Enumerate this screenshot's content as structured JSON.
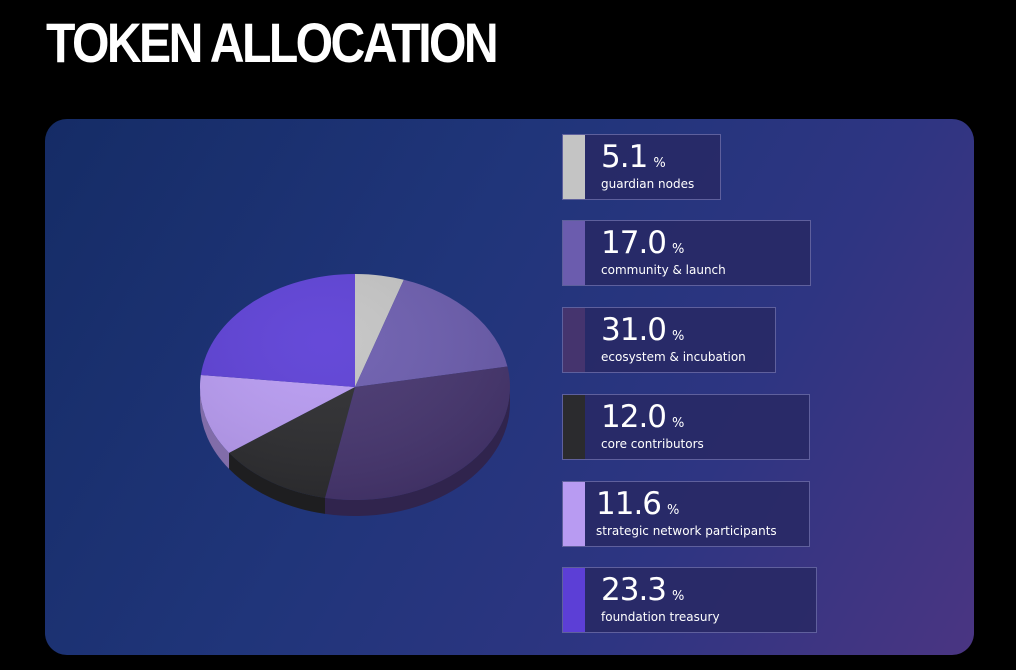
{
  "page": {
    "title": "TOKEN ALLOCATION"
  },
  "chart_data": {
    "type": "pie",
    "unit": "%",
    "slices": [
      {
        "label": "guardian nodes",
        "value": 5.1,
        "display": "5.1",
        "color": "#c4c4c4"
      },
      {
        "label": "community & launch",
        "value": 17.0,
        "display": "17.0",
        "color": "#6b5cae"
      },
      {
        "label": "ecosystem & incubation",
        "value": 31.0,
        "display": "31.0",
        "color": "#45346e"
      },
      {
        "label": "core contributors",
        "value": 12.0,
        "display": "12.0",
        "color": "#2b2b2e"
      },
      {
        "label": "strategic network participants",
        "value": 11.6,
        "display": "11.6",
        "color": "#b89bf2"
      },
      {
        "label": "foundation treasury",
        "value": 23.3,
        "display": "23.3",
        "color": "#5c3fd6"
      }
    ]
  }
}
